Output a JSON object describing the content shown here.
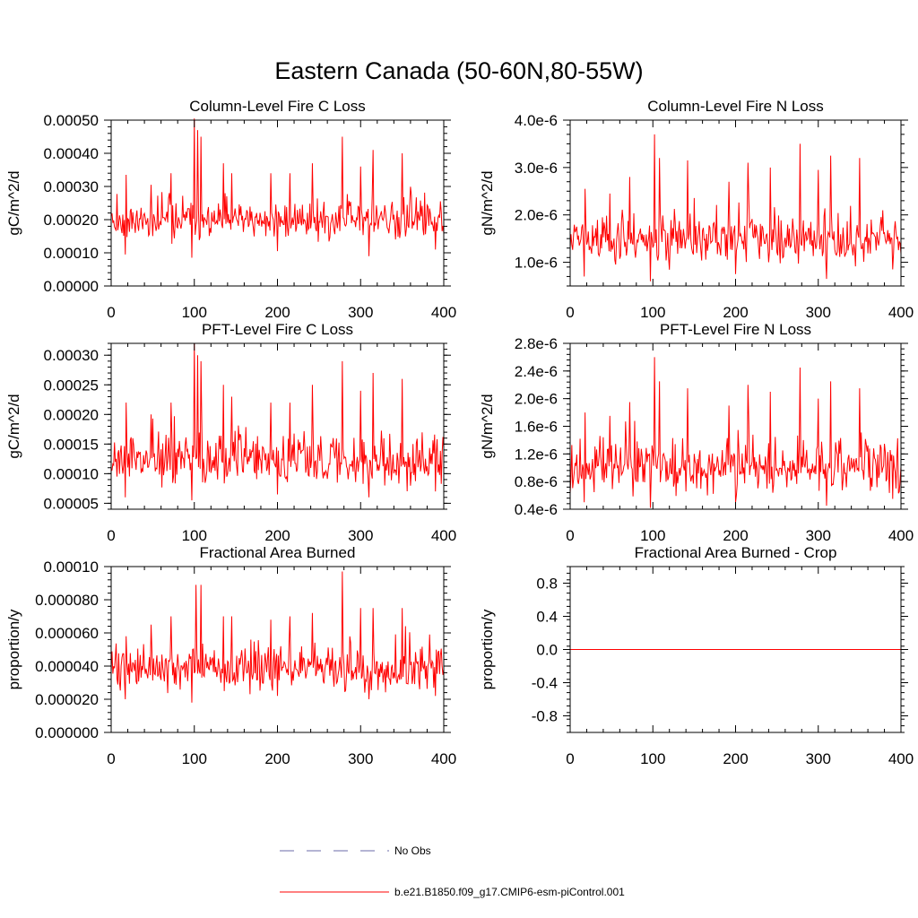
{
  "figure_title": "Eastern Canada (50-60N,80-55W)",
  "colors": {
    "series": "#ff0000",
    "obs": "#6a6aa8",
    "axis": "#000000"
  },
  "legend": [
    {
      "label": "No Obs",
      "style": "dashed",
      "color": "#6a6aa8"
    },
    {
      "label": "b.e21.B1850.f09_g17.CMIP6-esm-piControl.001",
      "style": "solid",
      "color": "#ff0000"
    }
  ],
  "chart_data": [
    {
      "type": "line",
      "title": "Column-Level Fire C Loss",
      "ylabel": "gC/m^2/d",
      "xlabel": "",
      "xlim": [
        0,
        400
      ],
      "ylim": [
        0,
        0.0005
      ],
      "xticks": [
        0,
        100,
        200,
        300,
        400
      ],
      "xtick_labels": [
        "0",
        "100",
        "200",
        "300",
        "400"
      ],
      "yticks": [
        0,
        0.0001,
        0.0002,
        0.0003,
        0.0004,
        0.0005
      ],
      "ytick_labels": [
        "0.00000",
        "0.00010",
        "0.00020",
        "0.00030",
        "0.00040",
        "0.00050"
      ],
      "series": [
        {
          "name": "b.e21.B1850.f09_g17.CMIP6-esm-piControl.001",
          "base": 0.000195,
          "noise": 4e-05,
          "seed": 11,
          "spikes": [
            [
              18,
              0.000335
            ],
            [
              48,
              0.000305
            ],
            [
              72,
              0.00034
            ],
            [
              100,
              0.000505
            ],
            [
              104,
              0.00047
            ],
            [
              108,
              0.00045
            ],
            [
              135,
              0.00037
            ],
            [
              145,
              0.00034
            ],
            [
              192,
              0.00034
            ],
            [
              215,
              0.00034
            ],
            [
              242,
              0.00037
            ],
            [
              278,
              0.00045
            ],
            [
              300,
              0.00036
            ],
            [
              315,
              0.00041
            ],
            [
              350,
              0.0004
            ]
          ],
          "dips": [
            [
              17,
              9.5e-05
            ],
            [
              97,
              8.5e-05
            ],
            [
              200,
              0.000105
            ],
            [
              310,
              9e-05
            ],
            [
              390,
              0.00011
            ]
          ]
        }
      ]
    },
    {
      "type": "line",
      "title": "Column-Level Fire N Loss",
      "ylabel": "gN/m^2/d",
      "xlabel": "",
      "xlim": [
        0,
        400
      ],
      "ylim": [
        5e-07,
        4e-06
      ],
      "xticks": [
        0,
        100,
        200,
        300,
        400
      ],
      "xtick_labels": [
        "0",
        "100",
        "200",
        "300",
        "400"
      ],
      "yticks": [
        1e-06,
        2e-06,
        3e-06,
        4e-06
      ],
      "ytick_labels": [
        "1.0e-6",
        "2.0e-6",
        "3.0e-6",
        "4.0e-6"
      ],
      "series": [
        {
          "name": "b.e21.B1850.f09_g17.CMIP6-esm-piControl.001",
          "base": 1.45e-06,
          "noise": 3.5e-07,
          "seed": 23,
          "spikes": [
            [
              18,
              2.55e-06
            ],
            [
              48,
              2.45e-06
            ],
            [
              72,
              2.8e-06
            ],
            [
              102,
              3.7e-06
            ],
            [
              108,
              3.2e-06
            ],
            [
              142,
              3.15e-06
            ],
            [
              192,
              2.7e-06
            ],
            [
              215,
              3.1e-06
            ],
            [
              242,
              3e-06
            ],
            [
              278,
              3.5e-06
            ],
            [
              300,
              2.95e-06
            ],
            [
              315,
              3.25e-06
            ],
            [
              350,
              3.2e-06
            ]
          ],
          "dips": [
            [
              17,
              7e-07
            ],
            [
              97,
              6e-07
            ],
            [
              200,
              7.5e-07
            ],
            [
              310,
              6.5e-07
            ],
            [
              390,
              8.5e-07
            ]
          ]
        }
      ]
    },
    {
      "type": "line",
      "title": "PFT-Level Fire C Loss",
      "ylabel": "gC/m^2/d",
      "xlabel": "",
      "xlim": [
        0,
        400
      ],
      "ylim": [
        4e-05,
        0.00032
      ],
      "xticks": [
        0,
        100,
        200,
        300,
        400
      ],
      "xtick_labels": [
        "0",
        "100",
        "200",
        "300",
        "400"
      ],
      "yticks": [
        5e-05,
        0.0001,
        0.00015,
        0.0002,
        0.00025,
        0.0003
      ],
      "ytick_labels": [
        "0.00005",
        "0.00010",
        "0.00015",
        "0.00020",
        "0.00025",
        "0.00030"
      ],
      "series": [
        {
          "name": "b.e21.B1850.f09_g17.CMIP6-esm-piControl.001",
          "base": 0.000122,
          "noise": 3e-05,
          "seed": 37,
          "spikes": [
            [
              18,
              0.00022
            ],
            [
              48,
              0.0002
            ],
            [
              72,
              0.00022
            ],
            [
              100,
              0.00032
            ],
            [
              104,
              0.0003
            ],
            [
              108,
              0.00029
            ],
            [
              135,
              0.00025
            ],
            [
              145,
              0.00023
            ],
            [
              192,
              0.00022
            ],
            [
              215,
              0.00022
            ],
            [
              242,
              0.00025
            ],
            [
              278,
              0.00029
            ],
            [
              300,
              0.00024
            ],
            [
              315,
              0.00027
            ],
            [
              350,
              0.00026
            ]
          ],
          "dips": [
            [
              17,
              6e-05
            ],
            [
              97,
              5.5e-05
            ],
            [
              200,
              6.5e-05
            ],
            [
              310,
              6e-05
            ],
            [
              390,
              7e-05
            ]
          ]
        }
      ]
    },
    {
      "type": "line",
      "title": "PFT-Level Fire N Loss",
      "ylabel": "gN/m^2/d",
      "xlabel": "",
      "xlim": [
        0,
        400
      ],
      "ylim": [
        4e-07,
        2.8e-06
      ],
      "xticks": [
        0,
        100,
        200,
        300,
        400
      ],
      "xtick_labels": [
        "0",
        "100",
        "200",
        "300",
        "400"
      ],
      "yticks": [
        4e-07,
        8e-07,
        1.2e-06,
        1.6e-06,
        2e-06,
        2.4e-06,
        2.8e-06
      ],
      "ytick_labels": [
        "0.4e-6",
        "0.8e-6",
        "1.2e-6",
        "1.6e-6",
        "2.0e-6",
        "2.4e-6",
        "2.8e-6"
      ],
      "series": [
        {
          "name": "b.e21.B1850.f09_g17.CMIP6-esm-piControl.001",
          "base": 1e-06,
          "noise": 2.5e-07,
          "seed": 53,
          "spikes": [
            [
              18,
              1.8e-06
            ],
            [
              48,
              1.75e-06
            ],
            [
              72,
              1.95e-06
            ],
            [
              102,
              2.6e-06
            ],
            [
              108,
              2.25e-06
            ],
            [
              142,
              2.15e-06
            ],
            [
              192,
              1.9e-06
            ],
            [
              215,
              2.2e-06
            ],
            [
              242,
              2.1e-06
            ],
            [
              278,
              2.45e-06
            ],
            [
              300,
              2e-06
            ],
            [
              315,
              2.25e-06
            ],
            [
              350,
              2.15e-06
            ]
          ],
          "dips": [
            [
              17,
              5e-07
            ],
            [
              97,
              4.2e-07
            ],
            [
              200,
              5e-07
            ],
            [
              310,
              4.5e-07
            ],
            [
              390,
              5.5e-07
            ]
          ]
        }
      ]
    },
    {
      "type": "line",
      "title": "Fractional Area Burned",
      "ylabel": "proportion/y",
      "xlabel": "",
      "xlim": [
        0,
        400
      ],
      "ylim": [
        0,
        0.0001
      ],
      "xticks": [
        0,
        100,
        200,
        300,
        400
      ],
      "xtick_labels": [
        "0",
        "100",
        "200",
        "300",
        "400"
      ],
      "yticks": [
        0,
        2e-05,
        4e-05,
        6e-05,
        8e-05,
        0.0001
      ],
      "ytick_labels": [
        "0.000000",
        "0.000020",
        "0.000040",
        "0.000060",
        "0.000080",
        "0.00010"
      ],
      "series": [
        {
          "name": "b.e21.B1850.f09_g17.CMIP6-esm-piControl.001",
          "base": 3.8e-05,
          "noise": 9e-06,
          "seed": 71,
          "spikes": [
            [
              18,
              5.8e-05
            ],
            [
              48,
              6.5e-05
            ],
            [
              72,
              7e-05
            ],
            [
              102,
              8.9e-05
            ],
            [
              108,
              8.9e-05
            ],
            [
              135,
              7e-05
            ],
            [
              145,
              7e-05
            ],
            [
              192,
              6.8e-05
            ],
            [
              215,
              7e-05
            ],
            [
              242,
              7.2e-05
            ],
            [
              278,
              9.7e-05
            ],
            [
              300,
              7.5e-05
            ],
            [
              315,
              7.5e-05
            ],
            [
              350,
              7.5e-05
            ]
          ],
          "dips": [
            [
              17,
              2e-05
            ],
            [
              97,
              1.8e-05
            ],
            [
              200,
              2.2e-05
            ],
            [
              310,
              2e-05
            ],
            [
              390,
              2.2e-05
            ]
          ]
        }
      ]
    },
    {
      "type": "line",
      "title": "Fractional Area Burned - Crop",
      "ylabel": "proportion/y",
      "xlabel": "",
      "xlim": [
        0,
        400
      ],
      "ylim": [
        -1.0,
        1.0
      ],
      "xticks": [
        0,
        100,
        200,
        300,
        400
      ],
      "xtick_labels": [
        "0",
        "100",
        "200",
        "300",
        "400"
      ],
      "yticks": [
        -0.8,
        -0.4,
        0.0,
        0.4,
        0.8
      ],
      "ytick_labels": [
        "-0.8",
        "-0.4",
        "0.0",
        "0.4",
        "0.8"
      ],
      "series": [
        {
          "name": "b.e21.B1850.f09_g17.CMIP6-esm-piControl.001",
          "constant": 0.0
        }
      ]
    }
  ]
}
